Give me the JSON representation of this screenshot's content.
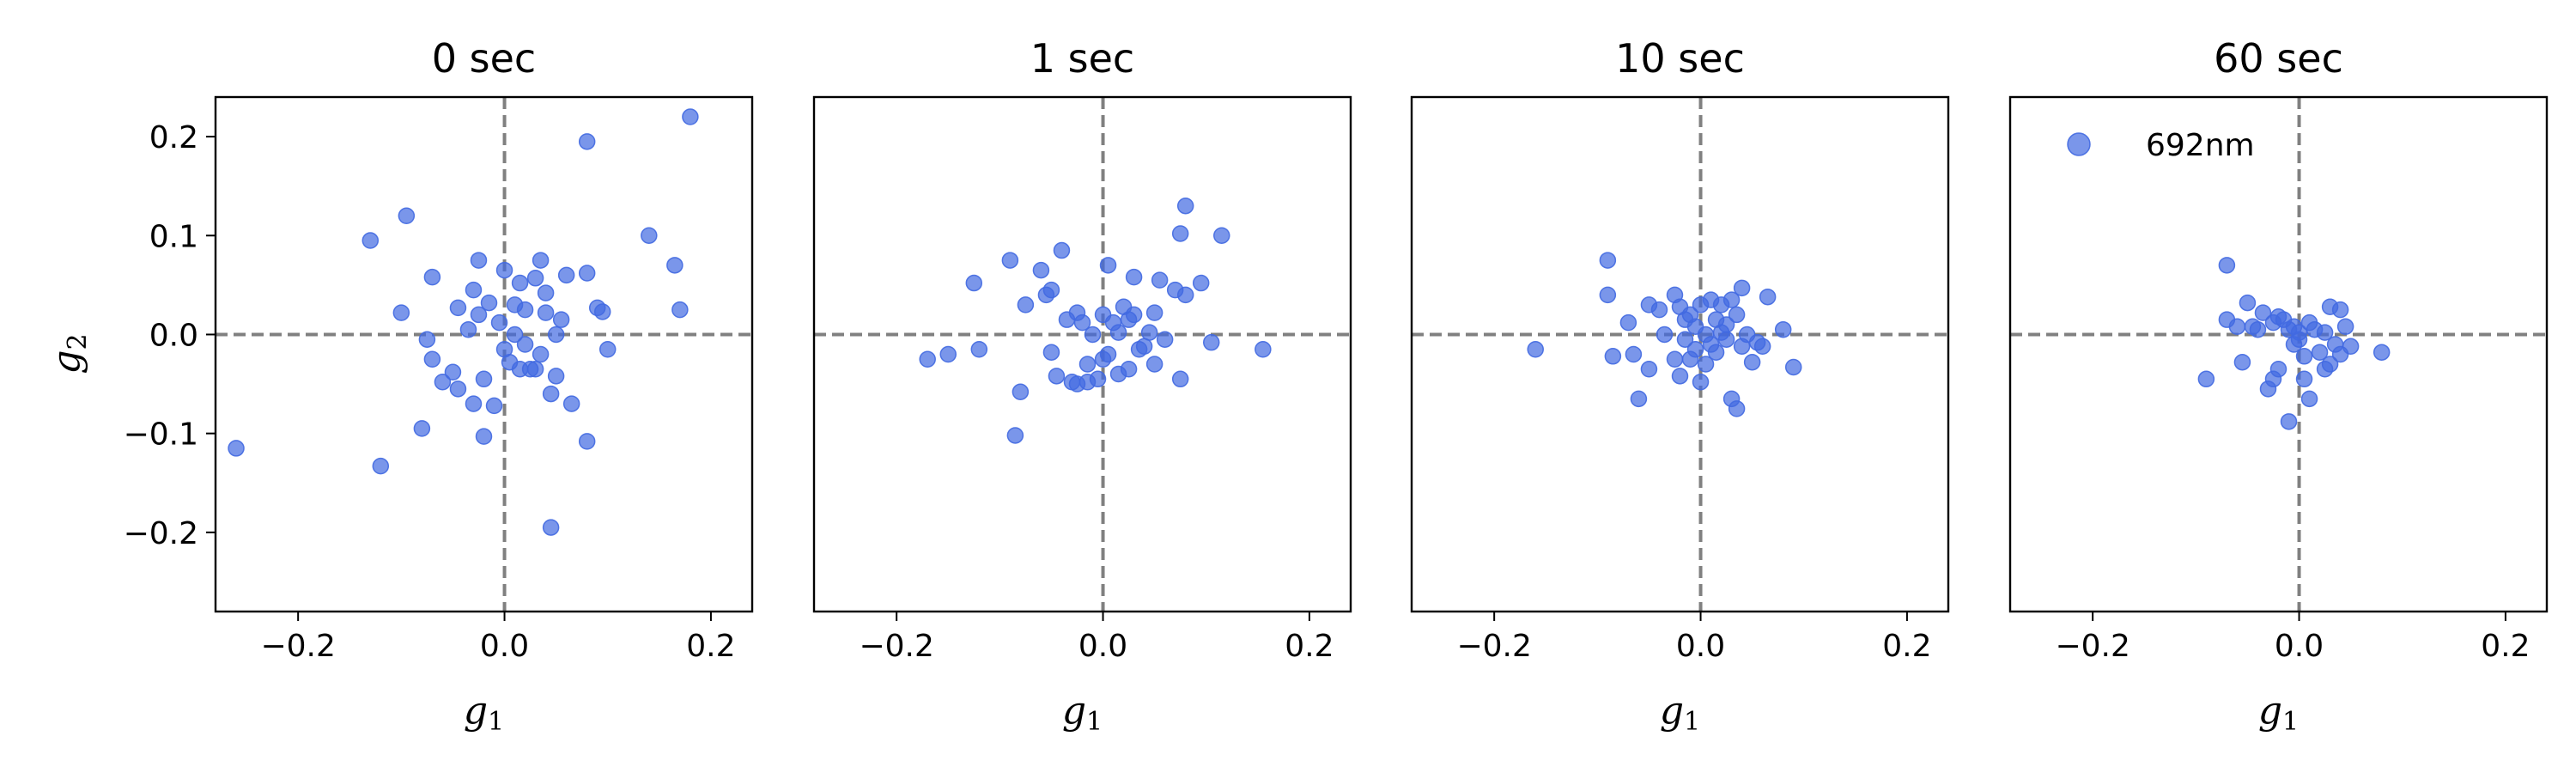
{
  "chart_data": {
    "type": "scatter",
    "xlabel": "g",
    "xlabel_sub": "1",
    "ylabel": "g",
    "ylabel_sub": "2",
    "xlim": [
      -0.28,
      0.24
    ],
    "ylim": [
      -0.28,
      0.24
    ],
    "xticks": [
      -0.2,
      0.0,
      0.2
    ],
    "xtick_labels": [
      "−0.2",
      "0.0",
      "0.2"
    ],
    "yticks": [
      -0.2,
      -0.1,
      0.0,
      0.1,
      0.2
    ],
    "ytick_labels": [
      "−0.2",
      "−0.1",
      "0.0",
      "0.1",
      "0.2"
    ],
    "shared_y": true,
    "reference_lines": {
      "x": 0.0,
      "y": 0.0,
      "style": "dashed",
      "color": "#808080"
    },
    "marker_color": "#4169e1",
    "legend": {
      "label": "692nm",
      "panel": 3,
      "placement": "upper-left"
    },
    "panels": [
      {
        "title": "0 sec",
        "points": [
          [
            -0.26,
            -0.115
          ],
          [
            -0.13,
            0.095
          ],
          [
            -0.12,
            -0.133
          ],
          [
            -0.095,
            0.12
          ],
          [
            -0.1,
            0.022
          ],
          [
            -0.08,
            -0.095
          ],
          [
            -0.07,
            0.058
          ],
          [
            -0.075,
            -0.005
          ],
          [
            -0.07,
            -0.025
          ],
          [
            -0.06,
            -0.048
          ],
          [
            -0.05,
            -0.038
          ],
          [
            -0.045,
            0.027
          ],
          [
            -0.045,
            -0.055
          ],
          [
            -0.035,
            0.005
          ],
          [
            -0.03,
            0.045
          ],
          [
            -0.03,
            -0.07
          ],
          [
            -0.025,
            0.075
          ],
          [
            -0.025,
            0.02
          ],
          [
            -0.02,
            -0.103
          ],
          [
            -0.02,
            -0.045
          ],
          [
            -0.015,
            0.032
          ],
          [
            -0.01,
            -0.072
          ],
          [
            -0.005,
            0.012
          ],
          [
            0.0,
            -0.015
          ],
          [
            0.0,
            0.065
          ],
          [
            0.005,
            -0.028
          ],
          [
            0.01,
            0.03
          ],
          [
            0.01,
            0.0
          ],
          [
            0.015,
            -0.035
          ],
          [
            0.015,
            0.052
          ],
          [
            0.02,
            0.025
          ],
          [
            0.02,
            -0.01
          ],
          [
            0.025,
            -0.035
          ],
          [
            0.03,
            0.057
          ],
          [
            0.03,
            -0.035
          ],
          [
            0.035,
            0.075
          ],
          [
            0.035,
            -0.02
          ],
          [
            0.04,
            0.042
          ],
          [
            0.04,
            0.022
          ],
          [
            0.045,
            -0.06
          ],
          [
            0.045,
            -0.195
          ],
          [
            0.05,
            0.0
          ],
          [
            0.05,
            -0.042
          ],
          [
            0.055,
            0.015
          ],
          [
            0.06,
            0.06
          ],
          [
            0.065,
            -0.07
          ],
          [
            0.08,
            0.062
          ],
          [
            0.08,
            -0.108
          ],
          [
            0.08,
            0.195
          ],
          [
            0.09,
            0.027
          ],
          [
            0.095,
            0.023
          ],
          [
            0.1,
            -0.015
          ],
          [
            0.14,
            0.1
          ],
          [
            0.165,
            0.07
          ],
          [
            0.17,
            0.025
          ],
          [
            0.18,
            0.22
          ]
        ]
      },
      {
        "title": "1 sec",
        "points": [
          [
            -0.17,
            -0.025
          ],
          [
            -0.15,
            -0.02
          ],
          [
            -0.125,
            0.052
          ],
          [
            -0.12,
            -0.015
          ],
          [
            -0.09,
            0.075
          ],
          [
            -0.085,
            -0.102
          ],
          [
            -0.08,
            -0.058
          ],
          [
            -0.075,
            0.03
          ],
          [
            -0.06,
            0.065
          ],
          [
            -0.055,
            0.04
          ],
          [
            -0.05,
            -0.018
          ],
          [
            -0.05,
            0.045
          ],
          [
            -0.045,
            -0.042
          ],
          [
            -0.04,
            0.085
          ],
          [
            -0.035,
            0.015
          ],
          [
            -0.03,
            -0.048
          ],
          [
            -0.025,
            0.022
          ],
          [
            -0.025,
            -0.05
          ],
          [
            -0.02,
            0.012
          ],
          [
            -0.015,
            -0.03
          ],
          [
            -0.015,
            -0.048
          ],
          [
            -0.01,
            0.0
          ],
          [
            -0.005,
            -0.045
          ],
          [
            0.0,
            0.02
          ],
          [
            0.0,
            -0.025
          ],
          [
            0.005,
            0.07
          ],
          [
            0.005,
            -0.02
          ],
          [
            0.01,
            0.012
          ],
          [
            0.015,
            -0.04
          ],
          [
            0.015,
            0.002
          ],
          [
            0.02,
            0.028
          ],
          [
            0.025,
            0.015
          ],
          [
            0.025,
            -0.035
          ],
          [
            0.03,
            0.058
          ],
          [
            0.03,
            0.02
          ],
          [
            0.035,
            -0.015
          ],
          [
            0.04,
            -0.012
          ],
          [
            0.045,
            0.002
          ],
          [
            0.05,
            0.022
          ],
          [
            0.05,
            -0.03
          ],
          [
            0.055,
            0.055
          ],
          [
            0.06,
            -0.005
          ],
          [
            0.07,
            0.045
          ],
          [
            0.075,
            0.102
          ],
          [
            0.075,
            -0.045
          ],
          [
            0.08,
            0.13
          ],
          [
            0.08,
            0.04
          ],
          [
            0.095,
            0.052
          ],
          [
            0.105,
            -0.008
          ],
          [
            0.115,
            0.1
          ],
          [
            0.155,
            -0.015
          ]
        ]
      },
      {
        "title": "10 sec",
        "points": [
          [
            -0.16,
            -0.015
          ],
          [
            -0.09,
            0.075
          ],
          [
            -0.09,
            0.04
          ],
          [
            -0.085,
            -0.022
          ],
          [
            -0.07,
            0.012
          ],
          [
            -0.065,
            -0.02
          ],
          [
            -0.06,
            -0.065
          ],
          [
            -0.05,
            0.03
          ],
          [
            -0.05,
            -0.035
          ],
          [
            -0.04,
            0.025
          ],
          [
            -0.035,
            0.0
          ],
          [
            -0.025,
            0.04
          ],
          [
            -0.025,
            -0.025
          ],
          [
            -0.02,
            0.028
          ],
          [
            -0.02,
            -0.042
          ],
          [
            -0.015,
            0.015
          ],
          [
            -0.015,
            -0.005
          ],
          [
            -0.01,
            0.02
          ],
          [
            -0.01,
            -0.025
          ],
          [
            -0.005,
            0.008
          ],
          [
            -0.005,
            -0.015
          ],
          [
            0.0,
            0.03
          ],
          [
            0.0,
            -0.048
          ],
          [
            0.005,
            0.0
          ],
          [
            0.005,
            -0.03
          ],
          [
            0.01,
            0.035
          ],
          [
            0.01,
            -0.01
          ],
          [
            0.015,
            0.015
          ],
          [
            0.015,
            -0.018
          ],
          [
            0.02,
            0.002
          ],
          [
            0.02,
            0.03
          ],
          [
            0.025,
            -0.005
          ],
          [
            0.025,
            0.01
          ],
          [
            0.03,
            -0.065
          ],
          [
            0.03,
            0.035
          ],
          [
            0.035,
            -0.075
          ],
          [
            0.035,
            0.02
          ],
          [
            0.04,
            0.047
          ],
          [
            0.04,
            -0.012
          ],
          [
            0.045,
            0.0
          ],
          [
            0.05,
            -0.028
          ],
          [
            0.055,
            -0.008
          ],
          [
            0.06,
            -0.012
          ],
          [
            0.065,
            0.038
          ],
          [
            0.08,
            0.005
          ],
          [
            0.09,
            -0.033
          ]
        ]
      },
      {
        "title": "60 sec",
        "points": [
          [
            -0.09,
            -0.045
          ],
          [
            -0.07,
            0.07
          ],
          [
            -0.07,
            0.015
          ],
          [
            -0.06,
            0.008
          ],
          [
            -0.055,
            -0.028
          ],
          [
            -0.05,
            0.032
          ],
          [
            -0.045,
            0.008
          ],
          [
            -0.04,
            0.005
          ],
          [
            -0.035,
            0.022
          ],
          [
            -0.03,
            -0.055
          ],
          [
            -0.025,
            -0.045
          ],
          [
            -0.025,
            0.012
          ],
          [
            -0.02,
            -0.035
          ],
          [
            -0.02,
            0.018
          ],
          [
            -0.015,
            0.015
          ],
          [
            -0.01,
            0.005
          ],
          [
            -0.01,
            -0.088
          ],
          [
            -0.005,
            0.008
          ],
          [
            -0.005,
            -0.01
          ],
          [
            0.0,
            -0.005
          ],
          [
            0.0,
            0.002
          ],
          [
            0.005,
            -0.022
          ],
          [
            0.005,
            -0.045
          ],
          [
            0.01,
            -0.065
          ],
          [
            0.01,
            0.012
          ],
          [
            0.015,
            0.005
          ],
          [
            0.02,
            -0.018
          ],
          [
            0.025,
            0.002
          ],
          [
            0.025,
            -0.035
          ],
          [
            0.03,
            0.028
          ],
          [
            0.03,
            -0.03
          ],
          [
            0.035,
            -0.01
          ],
          [
            0.04,
            0.025
          ],
          [
            0.04,
            -0.02
          ],
          [
            0.045,
            0.008
          ],
          [
            0.05,
            -0.012
          ],
          [
            0.08,
            -0.018
          ]
        ]
      }
    ]
  }
}
